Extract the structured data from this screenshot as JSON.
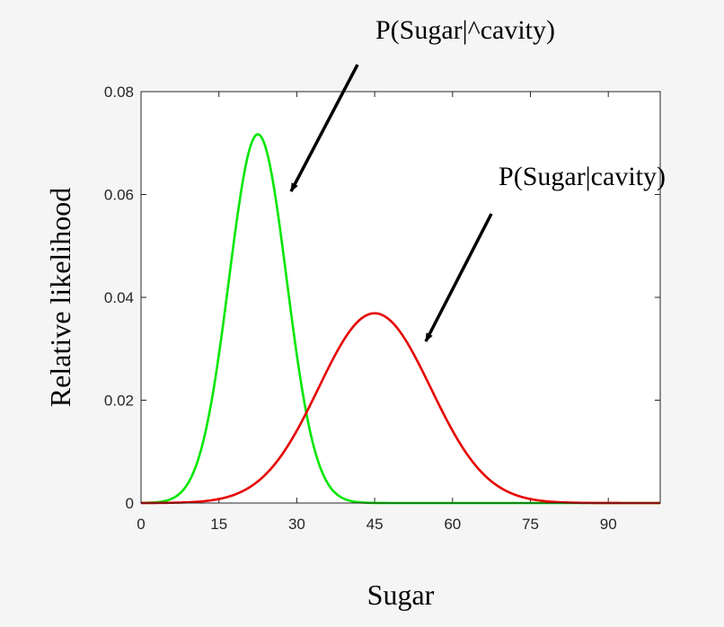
{
  "chart_data": {
    "type": "line",
    "xlabel": "Sugar",
    "ylabel": "Relative likelihood",
    "xlim": [
      0,
      100
    ],
    "ylim": [
      0,
      0.08
    ],
    "x_ticks": [
      0,
      15,
      30,
      45,
      60,
      75,
      90
    ],
    "y_ticks": [
      0,
      0.02,
      0.04,
      0.06,
      0.08
    ],
    "y_tick_labels": [
      "0",
      "0.02",
      "0.04",
      "0.06",
      "0.08"
    ],
    "grid": false,
    "series": [
      {
        "name": "P(Sugar|^cavity)",
        "color": "#00e600",
        "distribution": "normal",
        "mean": 22.5,
        "std": 5.56,
        "peak": 0.0717
      },
      {
        "name": "P(Sugar|cavity)",
        "color": "#e60000",
        "distribution": "normal",
        "mean": 45,
        "std": 10.8,
        "peak": 0.0369
      }
    ],
    "annotations": [
      {
        "text": "P(Sugar|^cavity)",
        "points_to": [
          28,
          0.0605
        ],
        "series": 0
      },
      {
        "text": "P(Sugar|cavity)",
        "points_to": [
          54,
          0.031
        ],
        "series": 1
      }
    ]
  }
}
